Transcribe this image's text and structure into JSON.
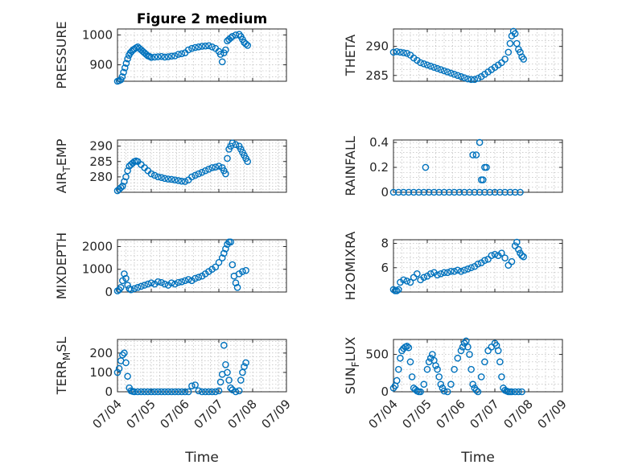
{
  "figure": {
    "title": "Figure 2 medium",
    "time_label": "Time",
    "time_ticks": [
      "07/04",
      "07/05",
      "07/06",
      "07/07",
      "07/08",
      "07/09"
    ],
    "marker_color": "#0072bd",
    "grid": "on",
    "marker": "circle"
  },
  "chart_data": [
    {
      "type": "scatter",
      "ylabel": "PRESSURE",
      "x_start": "07/04",
      "x_end": "07/09",
      "xlim": [
        0,
        5
      ],
      "ylim": [
        845,
        1020
      ],
      "yticks": [
        900,
        1000
      ],
      "x": [
        0,
        0.05,
        0.1,
        0.14,
        0.18,
        0.22,
        0.26,
        0.3,
        0.34,
        0.38,
        0.42,
        0.46,
        0.5,
        0.55,
        0.6,
        0.65,
        0.7,
        0.75,
        0.8,
        0.85,
        0.9,
        0.95,
        1.0,
        1.1,
        1.2,
        1.3,
        1.4,
        1.5,
        1.6,
        1.7,
        1.8,
        1.9,
        2.0,
        2.1,
        2.2,
        2.3,
        2.4,
        2.5,
        2.6,
        2.7,
        2.8,
        2.9,
        3.0,
        3.05,
        3.1,
        3.15,
        3.2,
        3.25,
        3.3,
        3.35,
        3.4,
        3.5,
        3.6,
        3.65,
        3.7,
        3.75,
        3.8,
        3.85
      ],
      "y": [
        845,
        847,
        850,
        860,
        875,
        890,
        905,
        920,
        932,
        940,
        945,
        950,
        953,
        957,
        960,
        955,
        950,
        945,
        940,
        935,
        930,
        928,
        925,
        926,
        927,
        928,
        926,
        927,
        929,
        930,
        935,
        937,
        940,
        950,
        955,
        958,
        960,
        962,
        963,
        964,
        960,
        955,
        945,
        935,
        910,
        940,
        950,
        980,
        985,
        990,
        995,
        1000,
        1002,
        995,
        985,
        975,
        970,
        965
      ]
    },
    {
      "type": "scatter",
      "ylabel": "THETA",
      "x_start": "07/04",
      "x_end": "07/09",
      "xlim": [
        0,
        5
      ],
      "ylim": [
        284,
        293
      ],
      "yticks": [
        285,
        290
      ],
      "x": [
        0,
        0.1,
        0.2,
        0.3,
        0.4,
        0.5,
        0.6,
        0.7,
        0.8,
        0.9,
        1.0,
        1.1,
        1.2,
        1.3,
        1.4,
        1.5,
        1.6,
        1.7,
        1.8,
        1.9,
        2.0,
        2.1,
        2.2,
        2.3,
        2.4,
        2.5,
        2.6,
        2.7,
        2.8,
        2.9,
        3.0,
        3.1,
        3.2,
        3.3,
        3.4,
        3.45,
        3.5,
        3.55,
        3.6,
        3.65,
        3.7,
        3.75,
        3.8,
        3.85
      ],
      "y": [
        289,
        289.1,
        289,
        288.9,
        288.8,
        288.5,
        288,
        287.6,
        287.2,
        287,
        286.8,
        286.6,
        286.4,
        286.2,
        286,
        285.8,
        285.6,
        285.4,
        285.2,
        285,
        284.8,
        284.6,
        284.4,
        284.3,
        284.3,
        284.5,
        284.8,
        285.2,
        285.6,
        286,
        286.4,
        286.8,
        287.2,
        287.8,
        289,
        290.5,
        291.8,
        292.6,
        292.2,
        290.5,
        289.5,
        289,
        288.2,
        287.8
      ]
    },
    {
      "type": "scatter",
      "ylabel": "AIR_TEMP",
      "x_start": "07/04",
      "x_end": "07/09",
      "xlim": [
        0,
        5
      ],
      "ylim": [
        275,
        292
      ],
      "yticks": [
        280,
        285,
        290
      ],
      "x": [
        0,
        0.05,
        0.1,
        0.15,
        0.2,
        0.25,
        0.3,
        0.35,
        0.4,
        0.45,
        0.5,
        0.55,
        0.6,
        0.7,
        0.8,
        0.9,
        1.0,
        1.1,
        1.2,
        1.3,
        1.4,
        1.5,
        1.6,
        1.7,
        1.8,
        1.9,
        2.0,
        2.1,
        2.2,
        2.3,
        2.4,
        2.5,
        2.6,
        2.7,
        2.8,
        2.9,
        3.0,
        3.1,
        3.15,
        3.2,
        3.25,
        3.3,
        3.35,
        3.4,
        3.5,
        3.6,
        3.65,
        3.7,
        3.75,
        3.8,
        3.85
      ],
      "y": [
        275.5,
        276,
        276.5,
        277,
        278.5,
        280,
        282,
        283.5,
        284,
        284.5,
        285,
        285.2,
        285,
        284,
        283,
        282,
        281,
        280.5,
        280,
        279.8,
        279.5,
        279.3,
        279.2,
        279,
        278.8,
        278.6,
        278.5,
        279,
        280,
        280.5,
        281,
        281.5,
        282,
        282.5,
        283,
        283.2,
        283.5,
        283,
        282,
        281,
        286,
        289,
        290,
        291,
        290.5,
        290,
        289,
        288,
        287,
        286,
        285
      ]
    },
    {
      "type": "scatter",
      "ylabel": "RAINFALL",
      "x_start": "07/04",
      "x_end": "07/09",
      "xlim": [
        0,
        5
      ],
      "ylim": [
        0,
        0.42
      ],
      "yticks": [
        0,
        0.2,
        0.4
      ],
      "x": [
        0,
        0.15,
        0.3,
        0.45,
        0.6,
        0.75,
        0.9,
        1.05,
        1.2,
        1.35,
        1.5,
        1.65,
        1.8,
        1.95,
        2.1,
        2.25,
        2.4,
        2.55,
        2.7,
        2.85,
        3.0,
        3.15,
        3.3,
        3.45,
        3.6,
        3.75,
        0.95,
        2.35,
        2.45,
        2.55,
        2.6,
        2.65,
        2.7,
        2.75
      ],
      "y": [
        0,
        0,
        0,
        0,
        0,
        0,
        0,
        0,
        0,
        0,
        0,
        0,
        0,
        0,
        0,
        0,
        0,
        0,
        0,
        0,
        0,
        0,
        0,
        0,
        0,
        0,
        0.2,
        0.3,
        0.3,
        0.4,
        0.1,
        0.1,
        0.2,
        0.2
      ]
    },
    {
      "type": "scatter",
      "ylabel": "MIXDEPTH",
      "x_start": "07/04",
      "x_end": "07/09",
      "xlim": [
        0,
        5
      ],
      "ylim": [
        0,
        2300
      ],
      "yticks": [
        0,
        1000,
        2000
      ],
      "x": [
        0,
        0.05,
        0.1,
        0.15,
        0.2,
        0.25,
        0.3,
        0.35,
        0.4,
        0.5,
        0.6,
        0.7,
        0.8,
        0.9,
        1.0,
        1.1,
        1.2,
        1.3,
        1.4,
        1.5,
        1.6,
        1.7,
        1.8,
        1.9,
        2.0,
        2.1,
        2.2,
        2.3,
        2.4,
        2.5,
        2.6,
        2.7,
        2.8,
        2.9,
        3.0,
        3.1,
        3.15,
        3.2,
        3.25,
        3.3,
        3.35,
        3.4,
        3.45,
        3.5,
        3.55,
        3.6,
        3.7,
        3.8
      ],
      "y": [
        50,
        100,
        200,
        500,
        800,
        600,
        300,
        150,
        100,
        150,
        200,
        250,
        300,
        350,
        400,
        350,
        450,
        420,
        350,
        300,
        400,
        350,
        420,
        450,
        500,
        550,
        500,
        600,
        650,
        700,
        800,
        900,
        1000,
        1100,
        1300,
        1500,
        1700,
        1900,
        2100,
        2200,
        2200,
        1200,
        700,
        400,
        200,
        800,
        900,
        950
      ]
    },
    {
      "type": "scatter",
      "ylabel": "H2OMIXRA",
      "x_start": "07/04",
      "x_end": "07/09",
      "xlim": [
        0,
        5
      ],
      "ylim": [
        4,
        8.3
      ],
      "yticks": [
        6,
        8
      ],
      "x": [
        0,
        0.05,
        0.1,
        0.15,
        0.2,
        0.3,
        0.4,
        0.5,
        0.6,
        0.7,
        0.8,
        0.9,
        1.0,
        1.1,
        1.2,
        1.3,
        1.4,
        1.5,
        1.6,
        1.7,
        1.8,
        1.9,
        2.0,
        2.1,
        2.2,
        2.3,
        2.4,
        2.5,
        2.6,
        2.7,
        2.8,
        2.9,
        3.0,
        3.1,
        3.2,
        3.3,
        3.4,
        3.5,
        3.6,
        3.65,
        3.7,
        3.75,
        3.8,
        3.85
      ],
      "y": [
        4.2,
        4.1,
        4.1,
        4.2,
        4.8,
        5,
        4.9,
        4.8,
        5.2,
        5.5,
        5,
        5.2,
        5.3,
        5.5,
        5.6,
        5.4,
        5.5,
        5.6,
        5.6,
        5.7,
        5.7,
        5.8,
        5.7,
        5.8,
        5.9,
        6,
        6.1,
        6.3,
        6.4,
        6.6,
        6.7,
        7,
        7.1,
        7,
        7.2,
        6.8,
        6.2,
        6.5,
        7.8,
        8.1,
        7.5,
        7.2,
        7,
        6.9
      ]
    },
    {
      "type": "scatter",
      "ylabel": "TERR_MSL",
      "x_start": "07/04",
      "x_end": "07/09",
      "xlim": [
        0,
        5
      ],
      "ylim": [
        0,
        270
      ],
      "yticks": [
        0,
        100,
        200
      ],
      "x": [
        0,
        0.05,
        0.1,
        0.15,
        0.2,
        0.25,
        0.3,
        0.35,
        0.4,
        0.45,
        0.5,
        0.6,
        0.7,
        0.8,
        0.9,
        1.0,
        1.1,
        1.2,
        1.3,
        1.4,
        1.5,
        1.6,
        1.7,
        1.8,
        1.9,
        2.0,
        2.1,
        2.2,
        2.3,
        2.4,
        2.5,
        2.6,
        2.7,
        2.8,
        2.9,
        3.0,
        3.05,
        3.1,
        3.15,
        3.2,
        3.25,
        3.3,
        3.35,
        3.4,
        3.5,
        3.6,
        3.65,
        3.7,
        3.75,
        3.8
      ],
      "y": [
        100,
        120,
        160,
        190,
        200,
        150,
        80,
        20,
        5,
        2,
        0,
        0,
        0,
        0,
        0,
        0,
        0,
        0,
        0,
        0,
        0,
        0,
        0,
        0,
        0,
        0,
        0,
        30,
        35,
        5,
        0,
        0,
        0,
        0,
        0,
        5,
        50,
        90,
        240,
        140,
        100,
        60,
        20,
        10,
        0,
        5,
        60,
        100,
        130,
        150
      ]
    },
    {
      "type": "scatter",
      "ylabel": "SUN_FLUX",
      "x_start": "07/04",
      "x_end": "07/09",
      "xlim": [
        0,
        5
      ],
      "ylim": [
        0,
        700
      ],
      "yticks": [
        0,
        500
      ],
      "x": [
        0,
        0.05,
        0.1,
        0.15,
        0.2,
        0.25,
        0.3,
        0.35,
        0.4,
        0.45,
        0.5,
        0.55,
        0.6,
        0.65,
        0.7,
        0.75,
        0.8,
        0.9,
        1.0,
        1.05,
        1.1,
        1.15,
        1.2,
        1.25,
        1.3,
        1.35,
        1.4,
        1.45,
        1.5,
        1.6,
        1.7,
        1.8,
        1.9,
        2.0,
        2.05,
        2.1,
        2.15,
        2.2,
        2.25,
        2.3,
        2.35,
        2.4,
        2.45,
        2.5,
        2.6,
        2.7,
        2.8,
        2.9,
        3.0,
        3.05,
        3.1,
        3.15,
        3.2,
        3.25,
        3.3,
        3.35,
        3.4,
        3.45,
        3.5,
        3.6,
        3.7,
        3.8
      ],
      "y": [
        50,
        80,
        150,
        300,
        450,
        550,
        580,
        600,
        610,
        590,
        400,
        200,
        50,
        30,
        10,
        0,
        0,
        100,
        300,
        400,
        450,
        500,
        420,
        350,
        300,
        200,
        100,
        50,
        10,
        0,
        100,
        300,
        450,
        550,
        600,
        650,
        680,
        600,
        500,
        300,
        100,
        50,
        20,
        0,
        200,
        400,
        550,
        600,
        650,
        620,
        550,
        400,
        200,
        50,
        20,
        10,
        0,
        0,
        0,
        0,
        0,
        0
      ]
    }
  ]
}
